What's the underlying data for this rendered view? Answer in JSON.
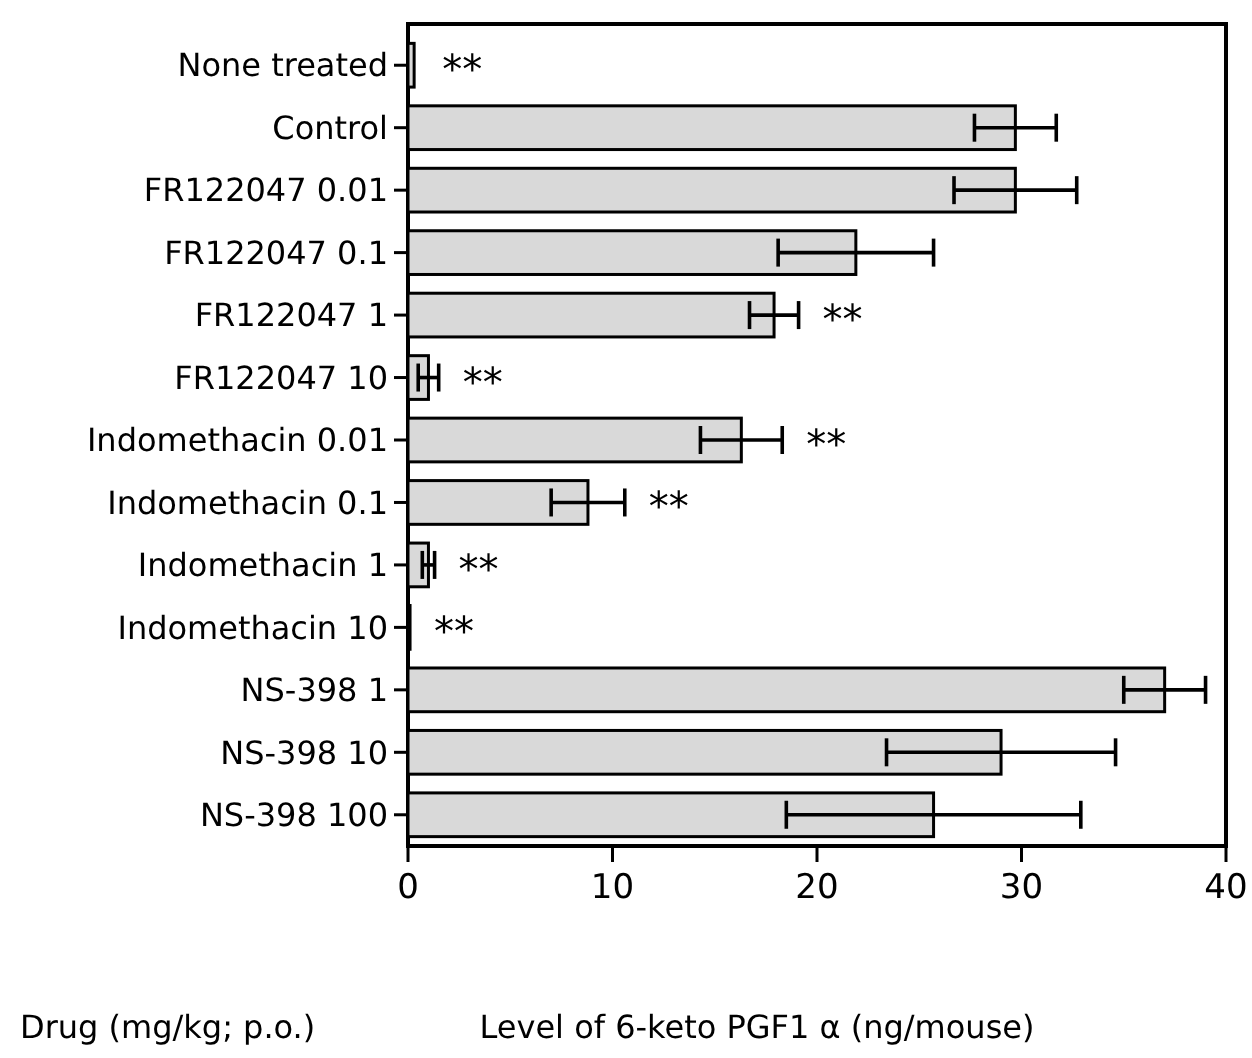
{
  "chart_data": {
    "type": "bar",
    "orientation": "horizontal",
    "xlabel": "Level of 6-keto PGF1 α (ng/mouse)",
    "ylabel": "Drug (mg/kg; p.o.)",
    "categories": [
      "None treated",
      "Control",
      "FR122047 0.01",
      "FR122047 0.1",
      "FR122047 1",
      "FR122047 10",
      "Indomethacin 0.01",
      "Indomethacin 0.1",
      "Indomethacin 1",
      "Indomethacin 10",
      "NS-398 1",
      "NS-398 10",
      "NS-398 100"
    ],
    "values": [
      0.3,
      29.7,
      29.7,
      21.9,
      17.9,
      1.0,
      16.3,
      8.8,
      1.0,
      0.1,
      37.0,
      29.0,
      25.7
    ],
    "errors": [
      null,
      2.0,
      3.0,
      3.8,
      1.2,
      0.5,
      2.0,
      1.8,
      0.3,
      null,
      2.0,
      5.6,
      7.2
    ],
    "color": "#d9d9d9",
    "xlim": [
      0,
      40
    ],
    "xticks": [
      0,
      10,
      20,
      30,
      40
    ],
    "grid": false,
    "annotations": [
      {
        "text": "**",
        "x": 0.5,
        "y": "None treated"
      },
      {
        "text": "**",
        "x": 19.1,
        "y": "FR122047 1"
      },
      {
        "text": "**",
        "x": 1.5,
        "y": "FR122047 10"
      },
      {
        "text": "**",
        "x": 18.3,
        "y": "Indomethacin 0.01"
      },
      {
        "text": "**",
        "x": 10.6,
        "y": "Indomethacin 0.1"
      },
      {
        "text": "**",
        "x": 1.3,
        "y": "Indomethacin 1"
      },
      {
        "text": "**",
        "x": 0.1,
        "y": "Indomethacin 10"
      }
    ]
  }
}
